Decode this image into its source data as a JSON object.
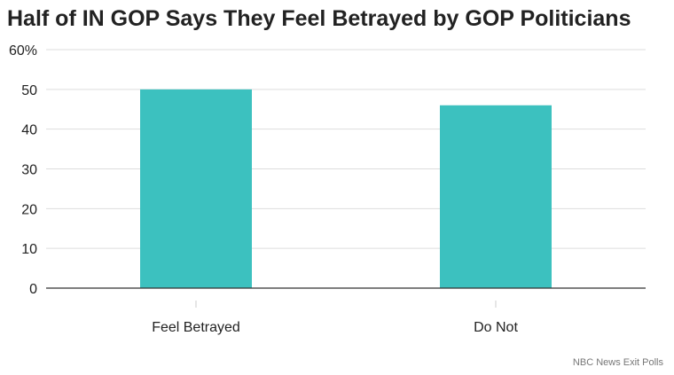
{
  "chart_data": {
    "type": "bar",
    "title": "Half of IN GOP Says They Feel Betrayed by GOP Politicians",
    "categories": [
      "Feel Betrayed",
      "Do Not"
    ],
    "values": [
      50,
      46
    ],
    "ylim": [
      0,
      60
    ],
    "yticks": [
      0,
      10,
      20,
      30,
      40,
      50,
      60
    ],
    "ytick_labels": [
      "0",
      "10",
      "20",
      "30",
      "40",
      "50",
      "60%"
    ],
    "xlabel": "",
    "ylabel": "",
    "grid": true,
    "bar_color": "#3cc1bf",
    "source": "NBC News Exit Polls"
  }
}
